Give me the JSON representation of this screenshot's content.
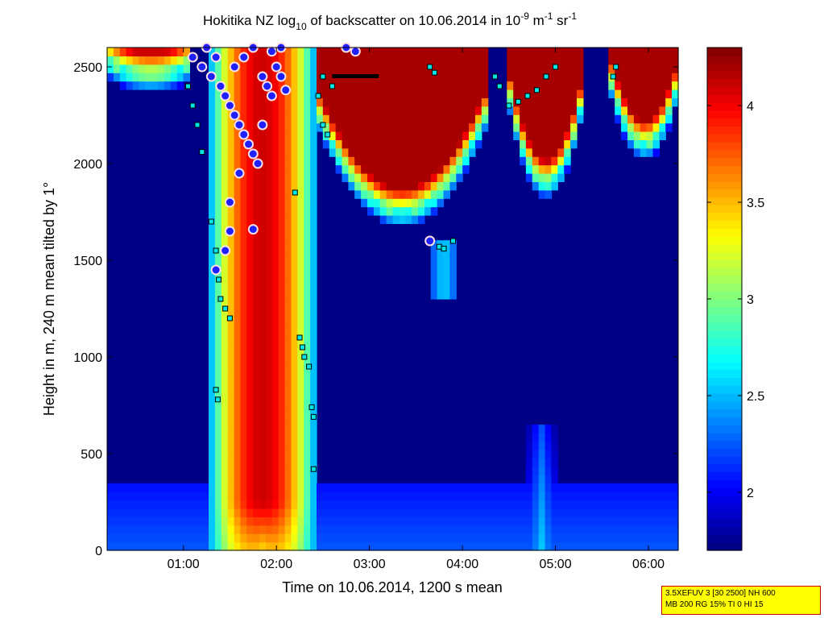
{
  "chart_data": {
    "type": "heatmap",
    "title": {
      "prefix": "Hokitika NZ log",
      "sub": "10",
      "middle": " of backscatter on 10.06.2014 in 10",
      "sup1": "-9",
      "unit1": " m",
      "sup2": "-1",
      "unit2": " sr",
      "sup3": "-1"
    },
    "xlabel": "Time on 10.06.2014, 1200 s mean",
    "ylabel": "Height in m, 240 m mean tilted by 1°",
    "x_ticks": [
      "01:00",
      "02:00",
      "03:00",
      "04:00",
      "05:00",
      "06:00"
    ],
    "x_tick_hours": [
      1,
      2,
      3,
      4,
      5,
      6
    ],
    "xlim_hours": [
      0.18,
      6.32
    ],
    "y_ticks": [
      0,
      500,
      1000,
      1500,
      2000,
      2500
    ],
    "ylim": [
      0,
      2600
    ],
    "colorbar": {
      "ticks": [
        "2",
        "2.5",
        "3",
        "3.5",
        "4"
      ],
      "tick_values": [
        2,
        2.5,
        3,
        3.5,
        4
      ],
      "range": [
        1.7,
        4.3
      ],
      "colormap": "jet"
    },
    "features": {
      "plume": {
        "start_hour": 1.3,
        "peak_hour": 1.9,
        "end_hour": 2.4,
        "top_m": 2600,
        "peak_value": 4.1
      },
      "boundary_layer": {
        "top_m": 350,
        "value": 2.1
      },
      "cloud_layers": [
        {
          "from_hour": 0.2,
          "to_hour": 1.1,
          "base_m": 2450,
          "value": 4.1
        },
        {
          "from_hour": 2.4,
          "to_hour": 4.3,
          "base_m": 1750,
          "value": 4.2
        },
        {
          "from_hour": 4.5,
          "to_hour": 5.3,
          "base_m": 1900,
          "value": 4.2
        },
        {
          "from_hour": 5.6,
          "to_hour": 6.32,
          "base_m": 2100,
          "value": 4.2
        }
      ]
    },
    "markers": {
      "cloud_base_cyan": [
        [
          1.05,
          2400
        ],
        [
          1.1,
          2300
        ],
        [
          1.15,
          2200
        ],
        [
          1.2,
          2060
        ],
        [
          1.3,
          1700
        ],
        [
          1.35,
          1550
        ],
        [
          1.38,
          1400
        ],
        [
          1.4,
          1300
        ],
        [
          1.45,
          1250
        ],
        [
          1.5,
          1200
        ],
        [
          1.35,
          830
        ],
        [
          1.37,
          780
        ],
        [
          2.2,
          1850
        ],
        [
          2.25,
          1100
        ],
        [
          2.28,
          1050
        ],
        [
          2.3,
          1000
        ],
        [
          2.35,
          950
        ],
        [
          2.38,
          740
        ],
        [
          2.4,
          690
        ],
        [
          2.4,
          420
        ],
        [
          2.45,
          2350
        ],
        [
          2.5,
          2200
        ],
        [
          2.55,
          2150
        ],
        [
          2.5,
          2450
        ],
        [
          2.6,
          2400
        ],
        [
          3.65,
          2500
        ],
        [
          3.7,
          2470
        ],
        [
          3.75,
          1570
        ],
        [
          3.8,
          1560
        ],
        [
          3.9,
          1600
        ],
        [
          4.35,
          2450
        ],
        [
          4.4,
          2400
        ],
        [
          4.5,
          2300
        ],
        [
          4.6,
          2320
        ],
        [
          4.7,
          2350
        ],
        [
          4.8,
          2380
        ],
        [
          4.9,
          2450
        ],
        [
          5.0,
          2500
        ],
        [
          5.62,
          2450
        ],
        [
          5.65,
          2500
        ]
      ],
      "aerosol_circles": [
        [
          1.1,
          2550
        ],
        [
          1.2,
          2500
        ],
        [
          1.3,
          2450
        ],
        [
          1.4,
          2400
        ],
        [
          1.45,
          2350
        ],
        [
          1.5,
          2300
        ],
        [
          1.55,
          2250
        ],
        [
          1.6,
          2200
        ],
        [
          1.65,
          2150
        ],
        [
          1.7,
          2100
        ],
        [
          1.75,
          2050
        ],
        [
          1.8,
          2000
        ],
        [
          1.85,
          2450
        ],
        [
          1.9,
          2400
        ],
        [
          1.95,
          2350
        ],
        [
          2.0,
          2500
        ],
        [
          2.05,
          2450
        ],
        [
          2.1,
          2380
        ],
        [
          1.55,
          2500
        ],
        [
          1.65,
          2550
        ],
        [
          1.75,
          2600
        ],
        [
          1.95,
          2580
        ],
        [
          2.05,
          2600
        ],
        [
          1.5,
          1800
        ],
        [
          1.5,
          1650
        ],
        [
          1.45,
          1550
        ],
        [
          1.35,
          1450
        ],
        [
          1.75,
          1660
        ],
        [
          2.75,
          2600
        ],
        [
          2.85,
          2580
        ],
        [
          3.65,
          1600
        ],
        [
          1.25,
          2600
        ],
        [
          1.35,
          2550
        ],
        [
          1.85,
          2200
        ],
        [
          1.6,
          1950
        ]
      ],
      "black_layer_hours": [
        2.6,
        3.1
      ],
      "black_layer_height": 2450
    }
  },
  "info_box": {
    "line1": "3.5XEFUV 3 [30 2500] NH 600",
    "line2": "MB 200 RG 15% TI 0 HI 15"
  }
}
